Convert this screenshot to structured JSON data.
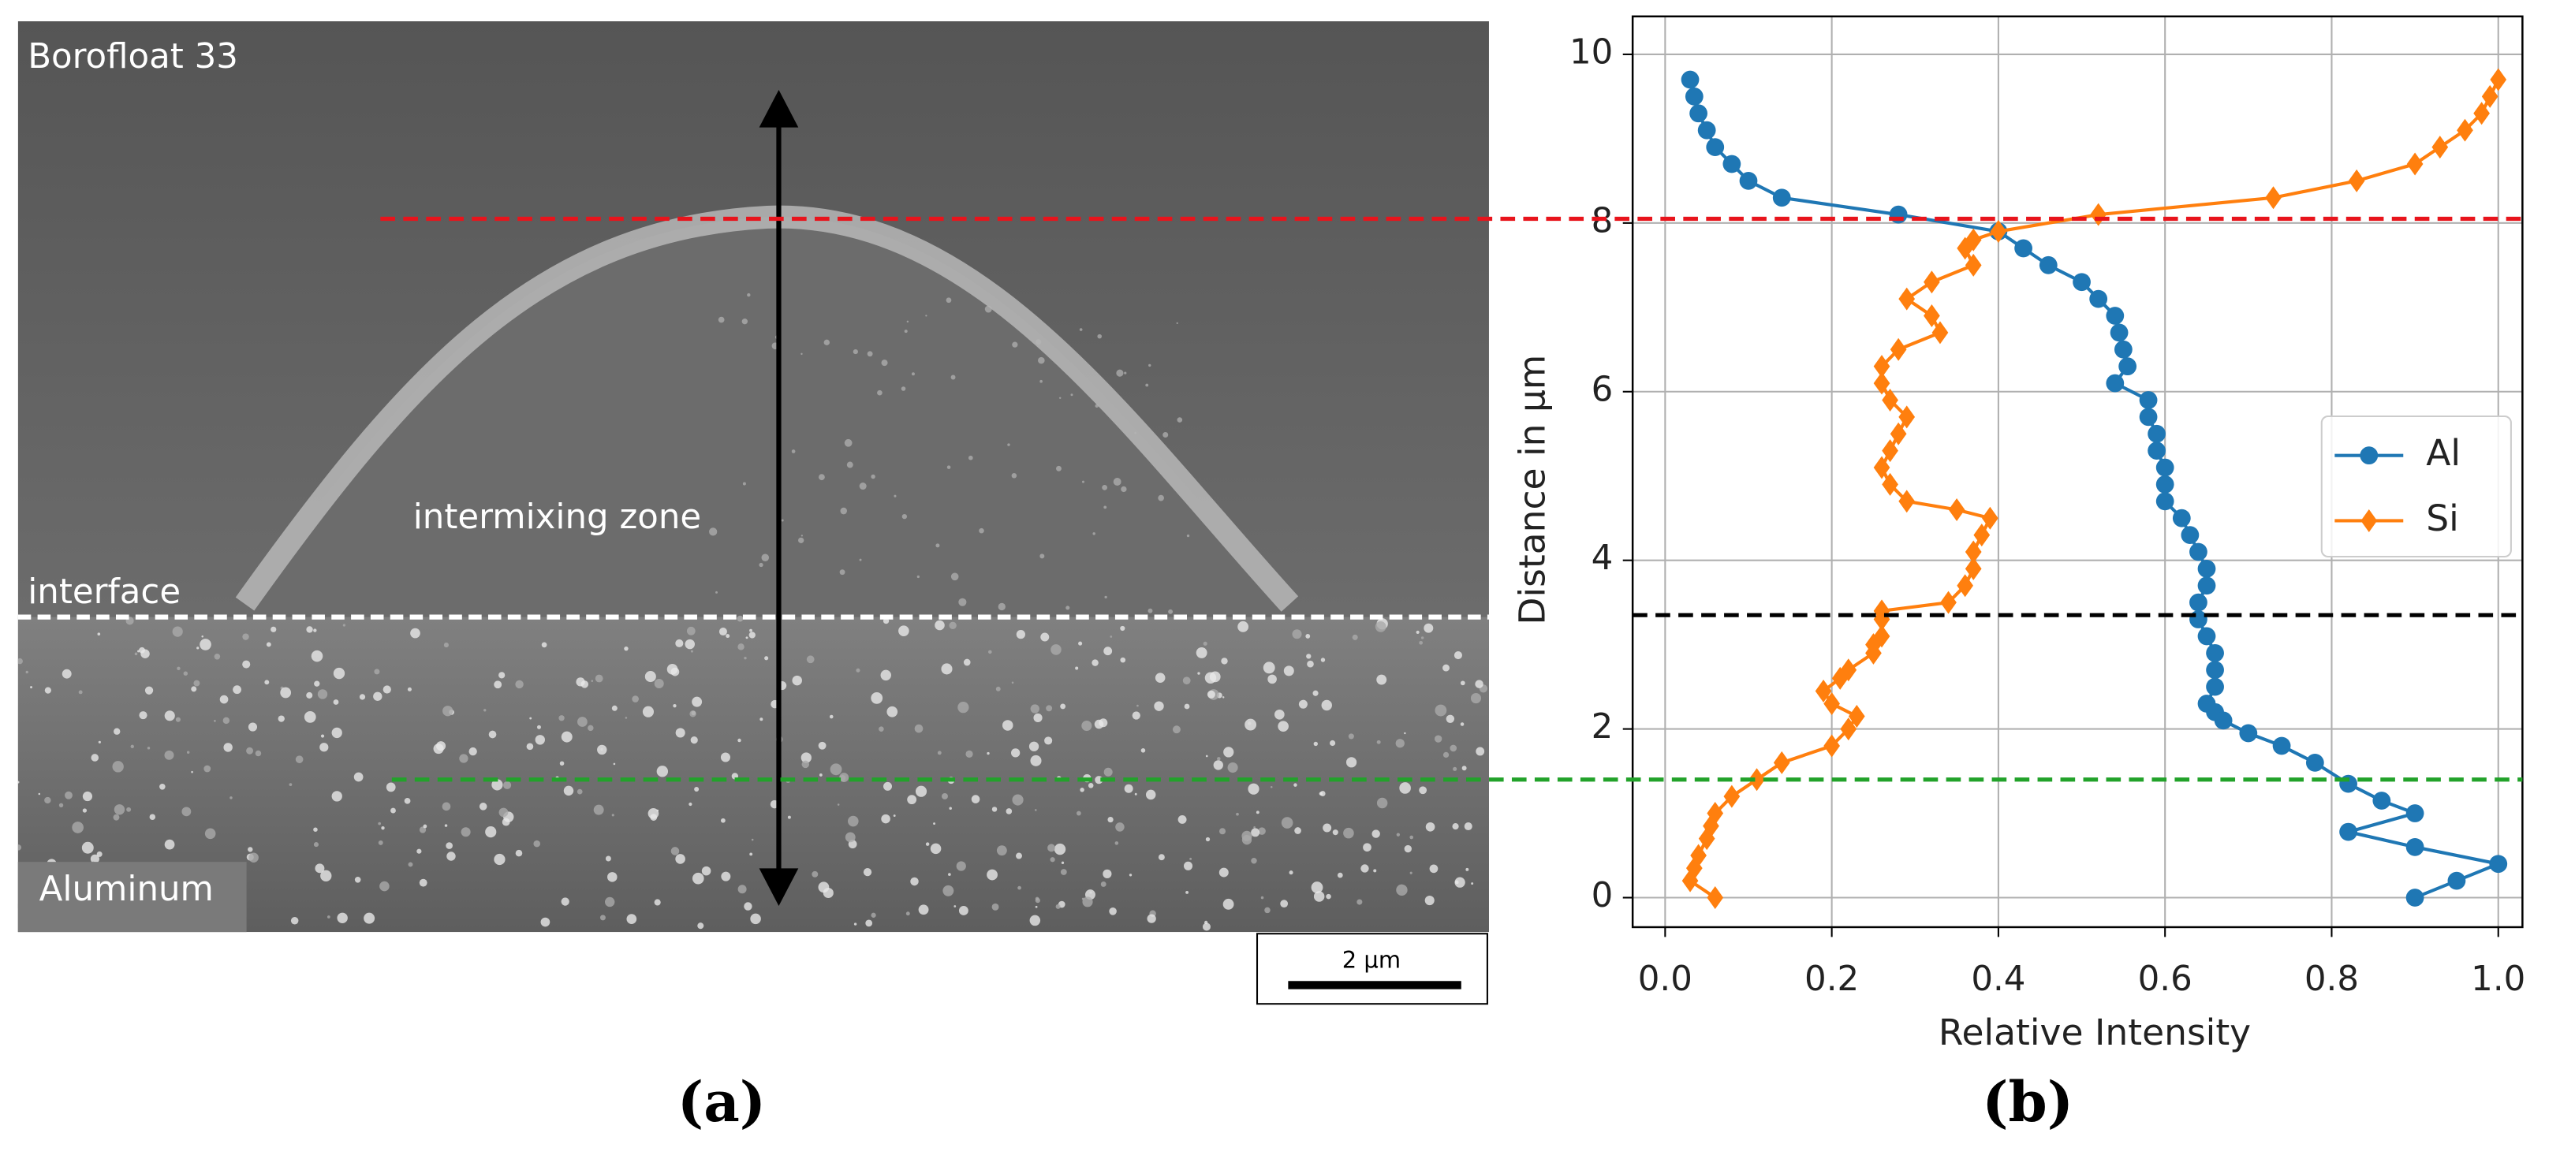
{
  "panel_a": {
    "top_label": "Borofloat 33",
    "zone_label": "intermixing zone",
    "interface_label": "interface",
    "bottom_label": "Aluminum",
    "scale_bar": "2 µm",
    "caption": "(a)"
  },
  "chart_data": {
    "type": "line",
    "caption": "(b)",
    "xlabel": "Relative Intensity",
    "ylabel": "Distance in µm",
    "xlim": [
      -0.039,
      1.029
    ],
    "ylim": [
      -0.35,
      10.45
    ],
    "xticks": [
      {
        "value": 0,
        "label": "0.0"
      },
      {
        "value": 0.2,
        "label": "0.2"
      },
      {
        "value": 0.4,
        "label": "0.4"
      },
      {
        "value": 0.6,
        "label": "0.6"
      },
      {
        "value": 0.8,
        "label": "0.8"
      },
      {
        "value": 1,
        "label": "1.0"
      }
    ],
    "yticks": [
      0,
      2,
      4,
      6,
      8,
      10
    ],
    "grid": true,
    "legend": "center right",
    "hlines": [
      {
        "value": 8.05,
        "color": "#e8141c"
      },
      {
        "value": 3.35,
        "color": "#000000"
      },
      {
        "value": 1.4,
        "color": "#22a22a"
      }
    ],
    "series": [
      {
        "name": "Al",
        "color": "#1f77b4",
        "marker": "circle",
        "x": [
          0.03,
          0.035,
          0.04,
          0.05,
          0.06,
          0.08,
          0.1,
          0.14,
          0.28,
          0.4,
          0.43,
          0.46,
          0.5,
          0.52,
          0.54,
          0.545,
          0.55,
          0.555,
          0.54,
          0.58,
          0.58,
          0.59,
          0.59,
          0.6,
          0.6,
          0.6,
          0.62,
          0.63,
          0.64,
          0.65,
          0.65,
          0.64,
          0.64,
          0.65,
          0.66,
          0.66,
          0.66,
          0.65,
          0.66,
          0.67,
          0.7,
          0.74,
          0.78,
          0.82,
          0.86,
          0.9,
          0.82,
          0.9,
          1.0,
          0.95,
          0.9
        ],
        "values": [
          9.7,
          9.5,
          9.3,
          9.1,
          8.9,
          8.7,
          8.5,
          8.3,
          8.1,
          7.9,
          7.7,
          7.5,
          7.3,
          7.1,
          6.9,
          6.7,
          6.5,
          6.3,
          6.1,
          5.9,
          5.7,
          5.5,
          5.3,
          5.1,
          4.9,
          4.7,
          4.5,
          4.3,
          4.1,
          3.9,
          3.7,
          3.5,
          3.3,
          3.1,
          2.9,
          2.7,
          2.5,
          2.3,
          2.2,
          2.1,
          1.95,
          1.8,
          1.6,
          1.35,
          1.15,
          1.0,
          0.78,
          0.6,
          0.4,
          0.2,
          0.0
        ]
      },
      {
        "name": "Si",
        "color": "#ff7f0e",
        "marker": "diamond",
        "x": [
          1.0,
          0.99,
          0.98,
          0.96,
          0.93,
          0.9,
          0.83,
          0.73,
          0.52,
          0.4,
          0.37,
          0.36,
          0.37,
          0.32,
          0.29,
          0.32,
          0.33,
          0.28,
          0.26,
          0.26,
          0.27,
          0.29,
          0.28,
          0.27,
          0.26,
          0.27,
          0.29,
          0.35,
          0.39,
          0.38,
          0.37,
          0.37,
          0.36,
          0.34,
          0.26,
          0.26,
          0.26,
          0.25,
          0.25,
          0.22,
          0.21,
          0.19,
          0.2,
          0.23,
          0.22,
          0.2,
          0.14,
          0.11,
          0.08,
          0.06,
          0.055,
          0.05,
          0.04,
          0.035,
          0.03,
          0.06
        ],
        "values": [
          9.7,
          9.5,
          9.3,
          9.1,
          8.9,
          8.7,
          8.5,
          8.3,
          8.1,
          7.9,
          7.8,
          7.7,
          7.5,
          7.3,
          7.1,
          6.9,
          6.7,
          6.5,
          6.3,
          6.1,
          5.9,
          5.7,
          5.5,
          5.3,
          5.1,
          4.9,
          4.7,
          4.6,
          4.5,
          4.3,
          4.1,
          3.9,
          3.7,
          3.5,
          3.4,
          3.3,
          3.1,
          3.0,
          2.9,
          2.7,
          2.6,
          2.45,
          2.3,
          2.15,
          2.0,
          1.8,
          1.6,
          1.4,
          1.2,
          1.0,
          0.85,
          0.7,
          0.5,
          0.35,
          0.2,
          0.0
        ]
      }
    ]
  }
}
